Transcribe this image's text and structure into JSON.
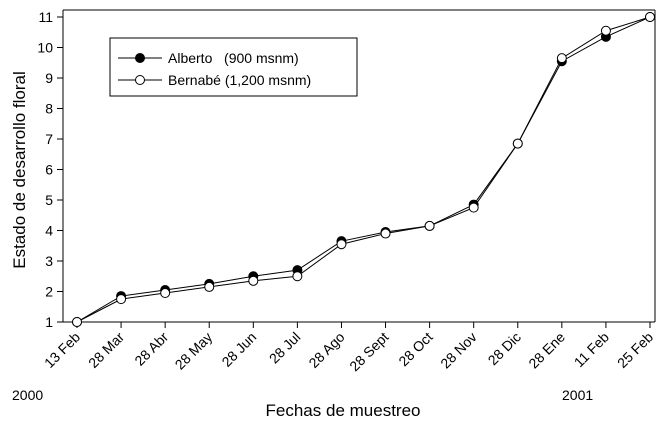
{
  "chart_data": {
    "type": "line",
    "x_label": "Fechas de muestreo",
    "y_label": "Estado de desarrollo floral",
    "annotations": [
      "2000",
      "2001"
    ],
    "categories": [
      "13 Feb",
      "28 Mar",
      "28 Abr",
      "28 May",
      "28 Jun",
      "28 Jul",
      "28 Ago",
      "28 Sept",
      "28 Oct",
      "28 Nov",
      "28 Dic",
      "28 Ene",
      "11 Feb",
      "25 Feb"
    ],
    "series": [
      {
        "name": "Alberto   (900 msnm)",
        "color": "#000000",
        "values": [
          1,
          1.85,
          2.05,
          2.25,
          2.5,
          2.7,
          3.65,
          3.95,
          4.15,
          4.85,
          6.85,
          9.55,
          10.35,
          11
        ]
      },
      {
        "name": "Bernabé (1,200 msnm)",
        "color": "#ffffff",
        "values": [
          1,
          1.75,
          1.95,
          2.15,
          2.35,
          2.5,
          3.55,
          3.9,
          4.15,
          4.75,
          6.85,
          9.65,
          10.55,
          11
        ]
      }
    ],
    "ylim": [
      1,
      11
    ],
    "yticks": [
      1,
      2,
      3,
      4,
      5,
      6,
      7,
      8,
      9,
      10,
      11
    ],
    "grid": false
  }
}
